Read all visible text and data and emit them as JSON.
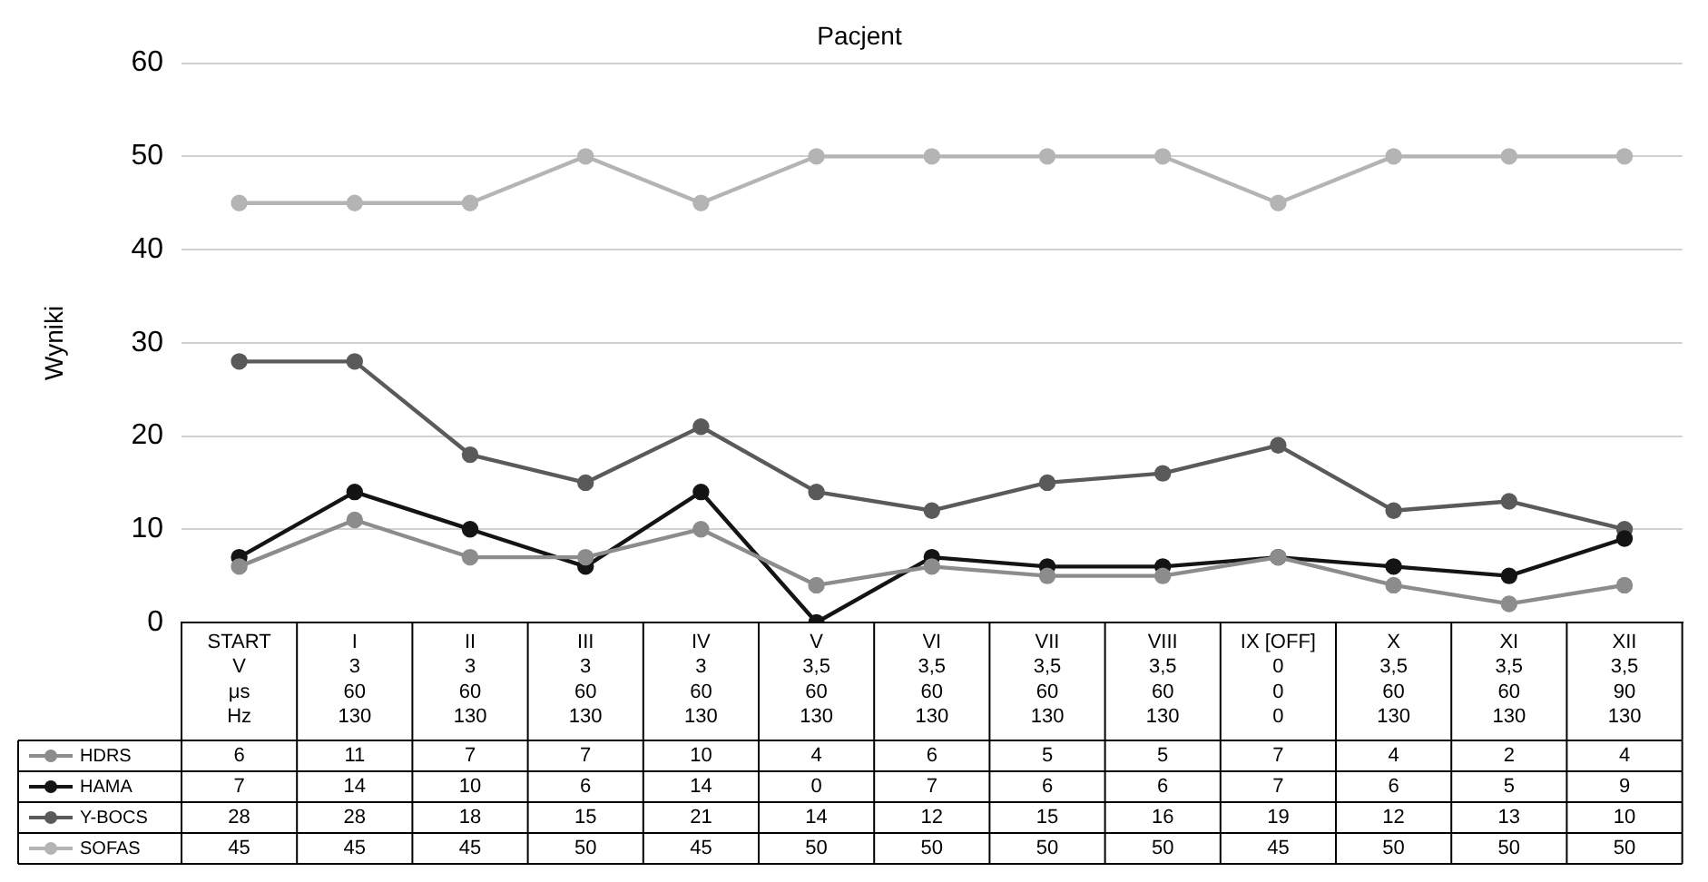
{
  "chart_data": {
    "type": "line",
    "title": "Pacjent",
    "ylabel": "Wyniki",
    "categories": [
      "START\nV\nμs\nHz",
      "I\n3\n60\n130",
      "II\n3\n60\n130",
      "III\n3\n60\n130",
      "IV\n3\n60\n130",
      "V\n3,5\n60\n130",
      "VI\n3,5\n60\n130",
      "VII\n3,5\n60\n130",
      "VIII\n3,5\n60\n130",
      "IX [OFF]\n0\n0\n0",
      "X\n3,5\n60\n130",
      "XI\n3,5\n60\n130",
      "XII\n3,5\n90\n130"
    ],
    "series": [
      {
        "name": "HDRS",
        "color": "#8c8c8c",
        "values": [
          6,
          11,
          7,
          7,
          10,
          4,
          6,
          5,
          5,
          7,
          4,
          2,
          4
        ]
      },
      {
        "name": "HAMA",
        "color": "#141414",
        "values": [
          7,
          14,
          10,
          6,
          14,
          0,
          7,
          6,
          6,
          7,
          6,
          5,
          9
        ]
      },
      {
        "name": "Y-BOCS",
        "color": "#5a5a5a",
        "values": [
          28,
          28,
          18,
          15,
          21,
          14,
          12,
          15,
          16,
          19,
          12,
          13,
          10
        ]
      },
      {
        "name": "SOFAS",
        "color": "#b4b4b4",
        "values": [
          45,
          45,
          45,
          50,
          45,
          50,
          50,
          50,
          50,
          45,
          50,
          50,
          50
        ]
      }
    ],
    "ylim": [
      0,
      60
    ],
    "yticks": [
      0,
      10,
      20,
      30,
      40,
      50,
      60
    ],
    "grid": "y",
    "legend": "bottom left",
    "marker": "circle",
    "line_style": "solid",
    "data_labels": true
  }
}
